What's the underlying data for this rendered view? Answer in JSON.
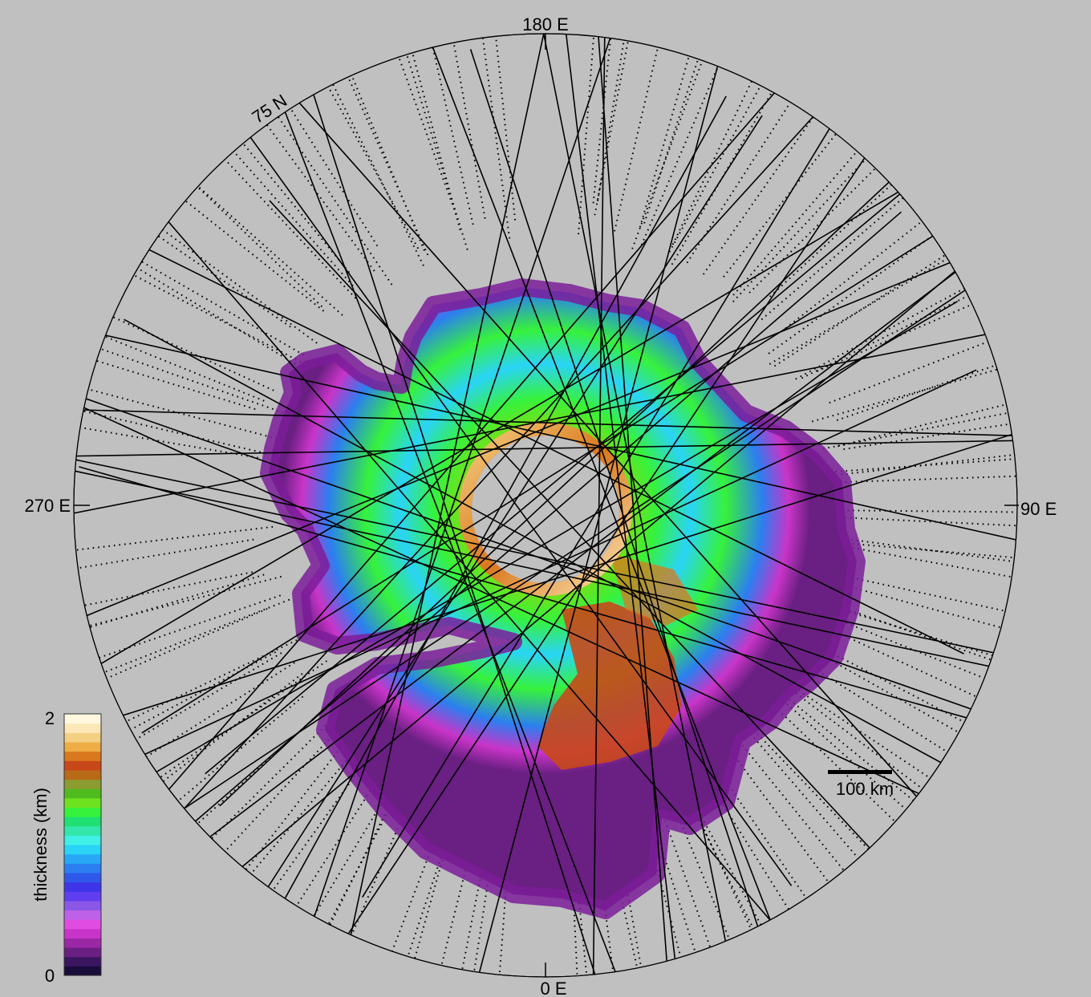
{
  "map": {
    "lon_labels": {
      "top": "180 E",
      "left": "270 E",
      "right": "90 E",
      "bottom": "0 E"
    },
    "lat_label": "75 N",
    "scale_bar": {
      "label": "100 km"
    }
  },
  "colorbar": {
    "label": "thickness (km)",
    "max_label": "2",
    "min_label": "0",
    "range": [
      0,
      2
    ],
    "colors": [
      "#1a0c3a",
      "#3a1660",
      "#6a1f82",
      "#9b27a6",
      "#c934c8",
      "#e14ce0",
      "#bd62e8",
      "#8a57e6",
      "#5f3ef0",
      "#3e34e8",
      "#2f58ea",
      "#2c7ff0",
      "#27a7f4",
      "#2ad4f7",
      "#3ff0e6",
      "#33e6ab",
      "#1fe073",
      "#36f23c",
      "#6ee21e",
      "#4fbb1f",
      "#8b9c30",
      "#b86a16",
      "#c9481a",
      "#d9781c",
      "#eeae45",
      "#f4d083",
      "#fce7b6",
      "#fff8de"
    ]
  },
  "colors": {
    "background": "#c0c0c0",
    "outline": "#000000"
  }
}
